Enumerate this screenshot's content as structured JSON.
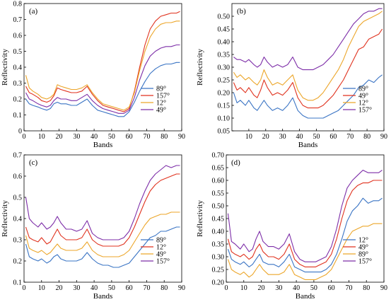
{
  "colors": {
    "blue": "#3a74c4",
    "red": "#e0321e",
    "orange": "#eca62a",
    "purple": "#7d2ea8"
  },
  "chart_data": [
    {
      "id": "a",
      "type": "line",
      "panel_label": "(a)",
      "xlabel": "Bands",
      "ylabel": "Reflectivity",
      "xlim": [
        0,
        90
      ],
      "ylim": [
        0,
        0.8
      ],
      "xticks": [
        0,
        10,
        20,
        30,
        40,
        50,
        60,
        70,
        80,
        90
      ],
      "yticks": [
        0,
        0.1,
        0.2,
        0.3,
        0.4,
        0.5,
        0.6,
        0.7,
        0.8
      ],
      "ytick_labels": [
        "0",
        "0.1",
        "0.2",
        "0.3",
        "0.4",
        "0.5",
        "0.6",
        "0.7",
        "0.8"
      ],
      "legend_position": "lower-right",
      "x": [
        1,
        3,
        5,
        8,
        10,
        13,
        15,
        17,
        19,
        21,
        24,
        27,
        30,
        33,
        36,
        39,
        42,
        45,
        48,
        51,
        54,
        57,
        60,
        63,
        66,
        69,
        72,
        75,
        78,
        81,
        84,
        87,
        89
      ],
      "series": [
        {
          "name": "89°",
          "color": "blue",
          "values": [
            0.2,
            0.17,
            0.16,
            0.15,
            0.14,
            0.13,
            0.14,
            0.17,
            0.18,
            0.17,
            0.17,
            0.16,
            0.16,
            0.18,
            0.2,
            0.16,
            0.13,
            0.12,
            0.11,
            0.1,
            0.09,
            0.09,
            0.12,
            0.18,
            0.25,
            0.31,
            0.36,
            0.39,
            0.41,
            0.42,
            0.42,
            0.43,
            0.43
          ]
        },
        {
          "name": "157°",
          "color": "red",
          "values": [
            0.28,
            0.24,
            0.23,
            0.21,
            0.19,
            0.18,
            0.19,
            0.22,
            0.27,
            0.26,
            0.25,
            0.24,
            0.24,
            0.25,
            0.28,
            0.23,
            0.19,
            0.16,
            0.15,
            0.14,
            0.13,
            0.12,
            0.14,
            0.25,
            0.4,
            0.54,
            0.64,
            0.69,
            0.72,
            0.73,
            0.74,
            0.74,
            0.75
          ]
        },
        {
          "name": "12°",
          "color": "orange",
          "values": [
            0.35,
            0.27,
            0.25,
            0.23,
            0.21,
            0.2,
            0.21,
            0.23,
            0.29,
            0.28,
            0.27,
            0.26,
            0.26,
            0.27,
            0.29,
            0.24,
            0.2,
            0.17,
            0.16,
            0.15,
            0.14,
            0.13,
            0.15,
            0.24,
            0.38,
            0.5,
            0.59,
            0.64,
            0.67,
            0.68,
            0.68,
            0.69,
            0.69
          ]
        },
        {
          "name": "49°",
          "color": "purple",
          "values": [
            0.24,
            0.2,
            0.19,
            0.17,
            0.16,
            0.15,
            0.16,
            0.19,
            0.21,
            0.2,
            0.2,
            0.19,
            0.19,
            0.21,
            0.23,
            0.19,
            0.16,
            0.14,
            0.13,
            0.12,
            0.11,
            0.11,
            0.13,
            0.21,
            0.32,
            0.41,
            0.47,
            0.5,
            0.52,
            0.53,
            0.53,
            0.54,
            0.54
          ]
        }
      ]
    },
    {
      "id": "b",
      "type": "line",
      "panel_label": "(b)",
      "xlabel": "Bands",
      "ylabel": "Reflectivity",
      "xlim": [
        0,
        90
      ],
      "ylim": [
        0.05,
        0.55
      ],
      "xticks": [
        10,
        20,
        30,
        40,
        50,
        60,
        70,
        80,
        90
      ],
      "yticks": [
        0.05,
        0.1,
        0.15,
        0.2,
        0.25,
        0.3,
        0.35,
        0.4,
        0.45,
        0.5
      ],
      "ytick_labels": [
        "0.05",
        "0.10",
        "0.15",
        "0.20",
        "0.25",
        "0.30",
        "0.35",
        "0.40",
        "0.45",
        "0.50"
      ],
      "legend_position": "lower-right",
      "x": [
        1,
        3,
        5,
        8,
        10,
        13,
        15,
        17,
        19,
        21,
        24,
        27,
        30,
        33,
        36,
        39,
        42,
        45,
        48,
        51,
        54,
        57,
        60,
        63,
        66,
        69,
        72,
        75,
        78,
        81,
        84,
        87,
        89
      ],
      "series": [
        {
          "name": "89°",
          "color": "blue",
          "values": [
            0.2,
            0.16,
            0.17,
            0.15,
            0.17,
            0.14,
            0.13,
            0.15,
            0.17,
            0.15,
            0.13,
            0.14,
            0.13,
            0.15,
            0.18,
            0.13,
            0.11,
            0.1,
            0.1,
            0.1,
            0.1,
            0.11,
            0.12,
            0.13,
            0.15,
            0.17,
            0.19,
            0.22,
            0.23,
            0.25,
            0.24,
            0.26,
            0.27
          ]
        },
        {
          "name": "49°",
          "color": "red",
          "values": [
            0.24,
            0.21,
            0.22,
            0.2,
            0.22,
            0.19,
            0.18,
            0.21,
            0.25,
            0.22,
            0.19,
            0.2,
            0.19,
            0.21,
            0.24,
            0.18,
            0.15,
            0.14,
            0.14,
            0.14,
            0.15,
            0.17,
            0.19,
            0.22,
            0.25,
            0.29,
            0.33,
            0.37,
            0.38,
            0.41,
            0.42,
            0.43,
            0.45
          ]
        },
        {
          "name": "12°",
          "color": "orange",
          "values": [
            0.28,
            0.26,
            0.27,
            0.25,
            0.26,
            0.24,
            0.23,
            0.25,
            0.29,
            0.26,
            0.23,
            0.24,
            0.23,
            0.25,
            0.27,
            0.21,
            0.18,
            0.17,
            0.17,
            0.18,
            0.2,
            0.23,
            0.26,
            0.29,
            0.33,
            0.38,
            0.42,
            0.46,
            0.48,
            0.49,
            0.5,
            0.51,
            0.52
          ]
        },
        {
          "name": "157°",
          "color": "purple",
          "values": [
            0.34,
            0.33,
            0.33,
            0.32,
            0.33,
            0.31,
            0.3,
            0.31,
            0.34,
            0.32,
            0.3,
            0.31,
            0.3,
            0.31,
            0.34,
            0.3,
            0.29,
            0.29,
            0.29,
            0.3,
            0.31,
            0.33,
            0.35,
            0.38,
            0.41,
            0.44,
            0.47,
            0.49,
            0.51,
            0.52,
            0.52,
            0.53,
            0.53
          ]
        }
      ]
    },
    {
      "id": "c",
      "type": "line",
      "panel_label": "(c)",
      "xlabel": "Bands",
      "ylabel": "Reflectivity",
      "xlim": [
        0,
        90
      ],
      "ylim": [
        0.1,
        0.7
      ],
      "xticks": [
        0,
        10,
        20,
        30,
        40,
        50,
        60,
        70,
        80,
        90
      ],
      "yticks": [
        0.1,
        0.2,
        0.3,
        0.4,
        0.5,
        0.6,
        0.7
      ],
      "ytick_labels": [
        "0.1",
        "0.2",
        "0.3",
        "0.4",
        "0.5",
        "0.6",
        "0.7"
      ],
      "legend_position": "lower-right",
      "x": [
        1,
        3,
        5,
        8,
        10,
        13,
        15,
        17,
        19,
        21,
        24,
        27,
        30,
        33,
        36,
        39,
        42,
        45,
        48,
        51,
        54,
        57,
        60,
        63,
        66,
        69,
        72,
        75,
        78,
        81,
        84,
        87,
        89
      ],
      "series": [
        {
          "name": "89°",
          "color": "blue",
          "values": [
            0.28,
            0.22,
            0.21,
            0.2,
            0.21,
            0.19,
            0.2,
            0.22,
            0.23,
            0.21,
            0.2,
            0.2,
            0.2,
            0.21,
            0.24,
            0.21,
            0.19,
            0.18,
            0.18,
            0.17,
            0.17,
            0.18,
            0.19,
            0.22,
            0.25,
            0.28,
            0.31,
            0.32,
            0.34,
            0.34,
            0.35,
            0.36,
            0.36
          ]
        },
        {
          "name": "12°",
          "color": "red",
          "values": [
            0.36,
            0.31,
            0.3,
            0.29,
            0.31,
            0.28,
            0.29,
            0.32,
            0.35,
            0.32,
            0.3,
            0.3,
            0.3,
            0.31,
            0.35,
            0.3,
            0.28,
            0.27,
            0.27,
            0.27,
            0.27,
            0.28,
            0.31,
            0.36,
            0.42,
            0.48,
            0.53,
            0.56,
            0.58,
            0.59,
            0.6,
            0.61,
            0.61
          ]
        },
        {
          "name": "49°",
          "color": "orange",
          "values": [
            0.32,
            0.26,
            0.25,
            0.24,
            0.25,
            0.23,
            0.24,
            0.26,
            0.28,
            0.26,
            0.25,
            0.25,
            0.25,
            0.26,
            0.29,
            0.25,
            0.23,
            0.22,
            0.22,
            0.22,
            0.22,
            0.23,
            0.25,
            0.29,
            0.33,
            0.37,
            0.4,
            0.41,
            0.42,
            0.42,
            0.43,
            0.43,
            0.43
          ]
        },
        {
          "name": "157°",
          "color": "purple",
          "values": [
            0.5,
            0.4,
            0.38,
            0.36,
            0.38,
            0.35,
            0.36,
            0.38,
            0.41,
            0.38,
            0.35,
            0.35,
            0.34,
            0.35,
            0.39,
            0.33,
            0.31,
            0.3,
            0.3,
            0.3,
            0.3,
            0.31,
            0.34,
            0.4,
            0.47,
            0.53,
            0.58,
            0.61,
            0.63,
            0.65,
            0.64,
            0.65,
            0.65
          ]
        }
      ]
    },
    {
      "id": "d",
      "type": "line",
      "panel_label": "(d)",
      "xlabel": "Bands",
      "ylabel": "Reflectivity",
      "xlim": [
        0,
        90
      ],
      "ylim": [
        0.2,
        0.7
      ],
      "xticks": [
        0,
        10,
        20,
        30,
        40,
        50,
        60,
        70,
        80,
        90
      ],
      "yticks": [
        0.2,
        0.25,
        0.3,
        0.35,
        0.4,
        0.45,
        0.5,
        0.55,
        0.6,
        0.65,
        0.7
      ],
      "ytick_labels": [
        "0.20",
        "0.25",
        "0.30",
        "0.35",
        "0.40",
        "0.45",
        "0.50",
        "0.55",
        "0.60",
        "0.65",
        "0.70"
      ],
      "legend_position": "lower-right",
      "x": [
        1,
        3,
        5,
        8,
        10,
        13,
        15,
        17,
        19,
        21,
        24,
        27,
        30,
        33,
        36,
        39,
        42,
        45,
        48,
        51,
        54,
        57,
        60,
        63,
        66,
        69,
        72,
        75,
        78,
        81,
        84,
        87,
        89
      ],
      "series": [
        {
          "name": "12°",
          "color": "blue",
          "values": [
            0.33,
            0.29,
            0.28,
            0.27,
            0.28,
            0.26,
            0.27,
            0.29,
            0.31,
            0.28,
            0.27,
            0.27,
            0.26,
            0.28,
            0.31,
            0.26,
            0.25,
            0.24,
            0.24,
            0.24,
            0.24,
            0.25,
            0.27,
            0.31,
            0.37,
            0.44,
            0.48,
            0.5,
            0.53,
            0.51,
            0.52,
            0.52,
            0.53
          ]
        },
        {
          "name": "49°",
          "color": "red",
          "values": [
            0.37,
            0.32,
            0.31,
            0.3,
            0.31,
            0.29,
            0.3,
            0.33,
            0.35,
            0.32,
            0.3,
            0.3,
            0.29,
            0.31,
            0.35,
            0.29,
            0.27,
            0.26,
            0.26,
            0.26,
            0.27,
            0.28,
            0.31,
            0.37,
            0.45,
            0.52,
            0.56,
            0.58,
            0.59,
            0.59,
            0.6,
            0.6,
            0.6
          ]
        },
        {
          "name": "89°",
          "color": "orange",
          "values": [
            0.29,
            0.25,
            0.24,
            0.23,
            0.24,
            0.22,
            0.23,
            0.25,
            0.27,
            0.25,
            0.23,
            0.23,
            0.23,
            0.24,
            0.27,
            0.23,
            0.22,
            0.21,
            0.21,
            0.21,
            0.22,
            0.23,
            0.25,
            0.29,
            0.33,
            0.37,
            0.4,
            0.41,
            0.42,
            0.42,
            0.43,
            0.43,
            0.43
          ]
        },
        {
          "name": "157°",
          "color": "purple",
          "values": [
            0.47,
            0.36,
            0.35,
            0.33,
            0.35,
            0.32,
            0.33,
            0.37,
            0.4,
            0.36,
            0.34,
            0.34,
            0.33,
            0.35,
            0.39,
            0.32,
            0.29,
            0.28,
            0.28,
            0.28,
            0.29,
            0.3,
            0.34,
            0.41,
            0.5,
            0.57,
            0.6,
            0.62,
            0.64,
            0.63,
            0.63,
            0.63,
            0.64
          ]
        }
      ]
    }
  ]
}
